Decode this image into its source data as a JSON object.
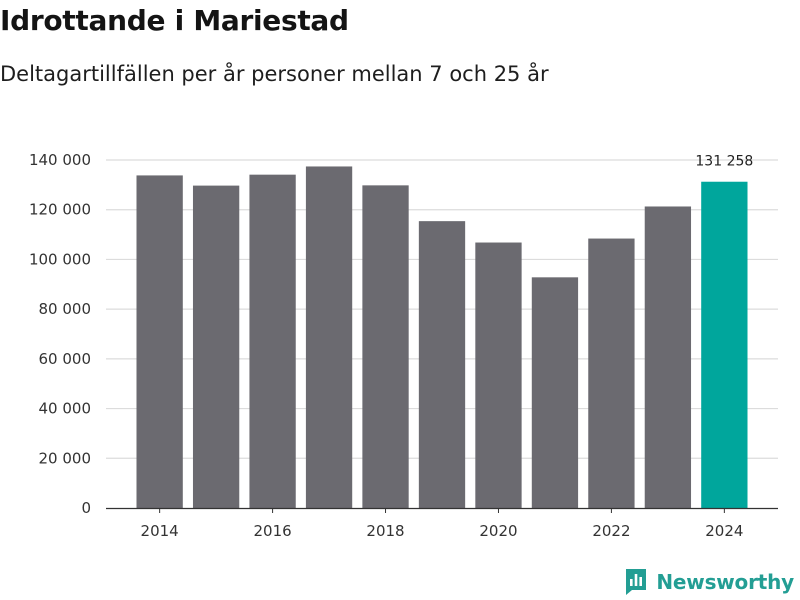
{
  "chart_data": {
    "type": "bar",
    "title": "Idrottande i Mariestad",
    "subtitle": "Deltagartillfällen per år personer mellan 7 och 25 år",
    "xlabel": "",
    "ylabel": "",
    "categories": [
      "2014",
      "2015",
      "2016",
      "2017",
      "2018",
      "2019",
      "2020",
      "2021",
      "2022",
      "2023",
      "2024"
    ],
    "values": [
      133800,
      129700,
      134100,
      137400,
      129800,
      115400,
      106800,
      92800,
      108400,
      121300,
      131258
    ],
    "ylim": [
      0,
      140000
    ],
    "yticks": [
      0,
      20000,
      40000,
      60000,
      80000,
      100000,
      120000,
      140000
    ],
    "ytick_labels": [
      "0",
      "20 000",
      "40 000",
      "60 000",
      "80 000",
      "100 000",
      "120 000",
      "140 000"
    ],
    "xtick_labels": [
      "2014",
      "2016",
      "2018",
      "2020",
      "2022",
      "2024"
    ],
    "grid": true,
    "highlight": {
      "category": "2024",
      "label": "131 258"
    },
    "colors": {
      "bar": "#6b6a70",
      "highlight": "#00a69c",
      "grid": "#dcdcdc",
      "axis": "#333333"
    }
  },
  "brand": {
    "name": "Newsworthy",
    "color": "#239e94"
  }
}
